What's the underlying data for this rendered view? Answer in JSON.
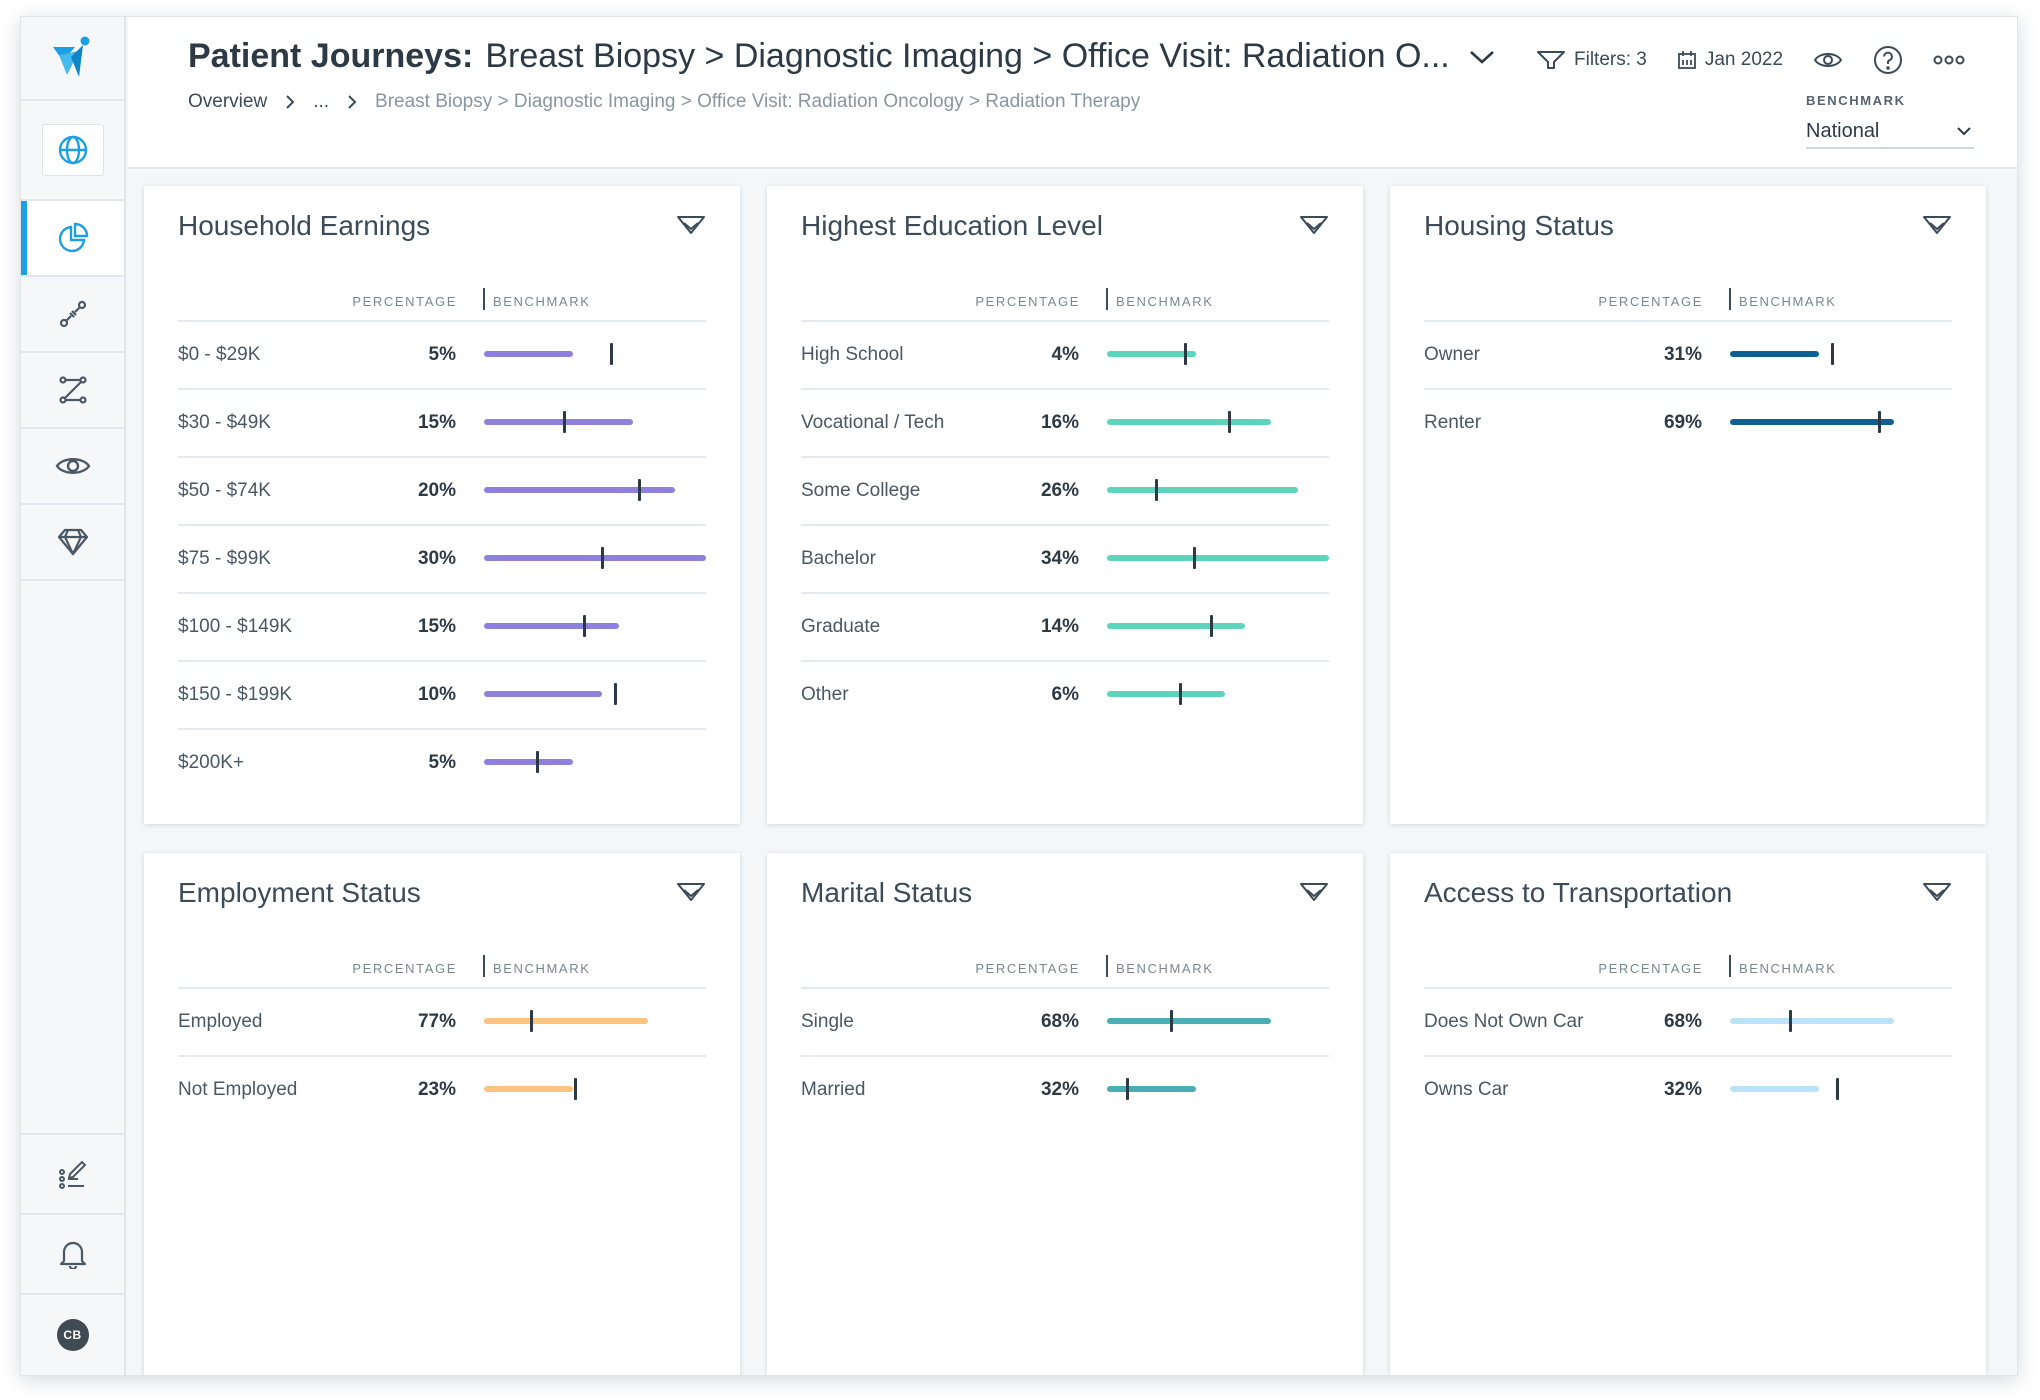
{
  "header": {
    "title_strong": "Patient Journeys:",
    "title_path": "Breast Biopsy > Diagnostic Imaging > Office Visit: Radiation O...",
    "breadcrumb_overview": "Overview",
    "breadcrumb_ellipsis": "...",
    "breadcrumb_current": "Breast Biopsy > Diagnostic Imaging > Office Visit: Radiation Oncology > Radiation Therapy",
    "filters_label": "Filters: 3",
    "date_label": "Jan 2022",
    "benchmark_label": "BENCHMARK",
    "benchmark_value": "National"
  },
  "sidebar": {
    "items": [
      "globe-icon",
      "pie-chart-icon",
      "journey-icon",
      "path-icon",
      "eye-icon",
      "diamond-icon"
    ],
    "bottom": [
      "checklist-edit-icon",
      "bell-icon"
    ],
    "avatar_initials": "CB"
  },
  "colors": {
    "accent": "#1ca0e3",
    "purple": "#8e80dd",
    "teal": "#5dd4bc",
    "navy": "#0e5f92",
    "orange": "#fcc381",
    "dark_teal": "#4aadb8",
    "light_blue": "#b9e3f8"
  },
  "column_labels": {
    "percentage": "PERCENTAGE",
    "benchmark": "BENCHMARK"
  },
  "cards": [
    {
      "title": "Household Earnings",
      "color": "#8e80dd",
      "rows": [
        {
          "label": "$0 - $29K",
          "pct": "5%",
          "bar": 0.4,
          "marker": 0.57
        },
        {
          "label": "$30 - $49K",
          "pct": "15%",
          "bar": 0.67,
          "marker": 0.36
        },
        {
          "label": "$50 - $74K",
          "pct": "20%",
          "bar": 0.86,
          "marker": 0.7
        },
        {
          "label": "$75 - $99K",
          "pct": "30%",
          "bar": 1.0,
          "marker": 0.53
        },
        {
          "label": "$100 - $149K",
          "pct": "15%",
          "bar": 0.61,
          "marker": 0.45
        },
        {
          "label": "$150 - $199K",
          "pct": "10%",
          "bar": 0.53,
          "marker": 0.59
        },
        {
          "label": "$200K+",
          "pct": "5%",
          "bar": 0.4,
          "marker": 0.24
        }
      ]
    },
    {
      "title": "Highest Education Level",
      "color": "#5dd4bc",
      "rows": [
        {
          "label": "High School",
          "pct": "4%",
          "bar": 0.4,
          "marker": 0.35
        },
        {
          "label": "Vocational / Tech",
          "pct": "16%",
          "bar": 0.74,
          "marker": 0.55
        },
        {
          "label": "Some College",
          "pct": "26%",
          "bar": 0.86,
          "marker": 0.22
        },
        {
          "label": "Bachelor",
          "pct": "34%",
          "bar": 1.0,
          "marker": 0.39
        },
        {
          "label": "Graduate",
          "pct": "14%",
          "bar": 0.62,
          "marker": 0.47
        },
        {
          "label": "Other",
          "pct": "6%",
          "bar": 0.53,
          "marker": 0.33
        }
      ]
    },
    {
      "title": "Housing Status",
      "color": "#0e5f92",
      "rows": [
        {
          "label": "Owner",
          "pct": "31%",
          "bar": 0.4,
          "marker": 0.46
        },
        {
          "label": "Renter",
          "pct": "69%",
          "bar": 0.74,
          "marker": 0.67
        }
      ]
    },
    {
      "title": "Employment Status",
      "color": "#fcc381",
      "rows": [
        {
          "label": "Employed",
          "pct": "77%",
          "bar": 0.74,
          "marker": 0.21
        },
        {
          "label": "Not Employed",
          "pct": "23%",
          "bar": 0.4,
          "marker": 0.41
        }
      ]
    },
    {
      "title": "Marital Status",
      "color": "#4aadb8",
      "rows": [
        {
          "label": "Single",
          "pct": "68%",
          "bar": 0.74,
          "marker": 0.29
        },
        {
          "label": "Married",
          "pct": "32%",
          "bar": 0.4,
          "marker": 0.09
        }
      ]
    },
    {
      "title": "Access to Transportation",
      "color": "#b9e3f8",
      "rows": [
        {
          "label": "Does Not Own Car",
          "pct": "68%",
          "bar": 0.74,
          "marker": 0.27
        },
        {
          "label": "Owns Car",
          "pct": "32%",
          "bar": 0.4,
          "marker": 0.48
        }
      ]
    }
  ]
}
